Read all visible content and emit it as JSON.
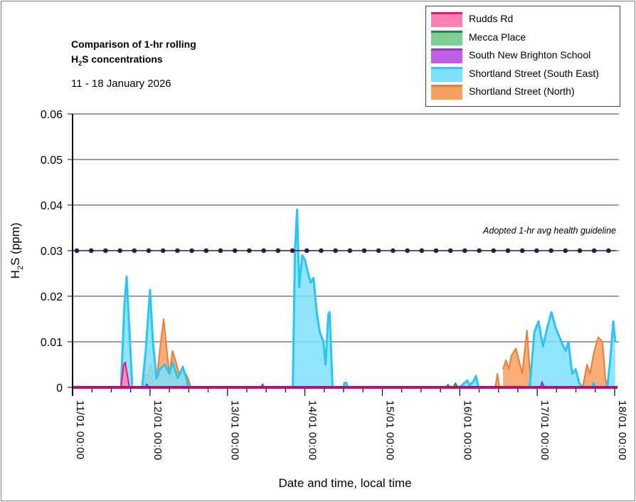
{
  "title_line1": "Comparison of 1-hr rolling",
  "title_line2_prefix": "H",
  "title_line2_sub": "2",
  "title_line2_suffix": "S concentrations",
  "subtitle": "11 - 18 January 2026",
  "chart_data": {
    "type": "area",
    "xlabel": "Date and time, local time",
    "ylabel_prefix": "H",
    "ylabel_sub": "2",
    "ylabel_suffix": "S (ppm)",
    "ylim": [
      0,
      0.06
    ],
    "yticks": [
      0,
      0.01,
      0.02,
      0.03,
      0.04,
      0.05,
      0.06
    ],
    "ytick_labels": [
      "0",
      "0.01",
      "0.02",
      "0.03",
      "0.04",
      "0.05",
      "0.06"
    ],
    "xlim": [
      "2026-01-11T00:00",
      "2026-01-18T00:00"
    ],
    "xticks": [
      "2026-01-11T00:00",
      "2026-01-12T00:00",
      "2026-01-13T00:00",
      "2026-01-14T00:00",
      "2026-01-15T00:00",
      "2026-01-16T00:00",
      "2026-01-17T00:00",
      "2026-01-18T00:00"
    ],
    "xtick_labels": [
      "11/01 00:00",
      "12/01 00:00",
      "13/01 00:00",
      "14/01 00:00",
      "15/01 00:00",
      "16/01 00:00",
      "17/01 00:00",
      "18/01 00:00"
    ],
    "minor_tick_hours": 6,
    "grid": "horizontal",
    "legend_position": "top-right",
    "guideline": {
      "value": 0.03,
      "label": "Adopted 1-hr avg health guideline",
      "color": "#2e1a47"
    },
    "series": [
      {
        "name": "Shortland Street (North)",
        "line_color": "#ed7d31",
        "fill_color": "#f8a061",
        "points": [
          [
            "2026-01-11T21:30",
            0
          ],
          [
            "2026-01-11T22:00",
            0.0027
          ],
          [
            "2026-01-11T23:20",
            0.0027
          ],
          [
            "2026-01-12T00:15",
            0.005
          ],
          [
            "2026-01-12T01:00",
            0.003
          ],
          [
            "2026-01-12T02:25",
            0.004
          ],
          [
            "2026-01-12T03:20",
            0.01
          ],
          [
            "2026-01-12T04:15",
            0.015
          ],
          [
            "2026-01-12T05:05",
            0.009
          ],
          [
            "2026-01-12T06:00",
            0.003
          ],
          [
            "2026-01-12T07:00",
            0.008
          ],
          [
            "2026-01-12T07:50",
            0.006
          ],
          [
            "2026-01-12T09:00",
            0.003
          ],
          [
            "2026-01-12T10:20",
            0.004
          ],
          [
            "2026-01-12T11:50",
            0.002
          ],
          [
            "2026-01-12T12:35",
            0
          ],
          [
            "2026-01-16T11:00",
            0
          ],
          [
            "2026-01-16T11:40",
            0.003
          ],
          [
            "2026-01-16T12:20",
            0
          ],
          [
            "2026-01-16T13:25",
            0.004
          ],
          [
            "2026-01-16T14:20",
            0.006
          ],
          [
            "2026-01-16T15:10",
            0.004
          ],
          [
            "2026-01-16T16:00",
            0.007
          ],
          [
            "2026-01-16T17:25",
            0.0085
          ],
          [
            "2026-01-16T18:20",
            0.006
          ],
          [
            "2026-01-16T19:20",
            0.003
          ],
          [
            "2026-01-16T20:50",
            0.0125
          ],
          [
            "2026-01-16T21:30",
            0.006
          ],
          [
            "2026-01-16T22:05",
            0
          ],
          [
            "2026-01-17T14:05",
            0
          ],
          [
            "2026-01-17T15:25",
            0.005
          ],
          [
            "2026-01-17T16:20",
            0.003
          ],
          [
            "2026-01-17T17:40",
            0.008
          ],
          [
            "2026-01-17T18:55",
            0.011
          ],
          [
            "2026-01-17T20:15",
            0.01
          ],
          [
            "2026-01-17T21:05",
            0.002
          ],
          [
            "2026-01-17T21:45",
            0
          ]
        ]
      },
      {
        "name": "Shortland Street (South East)",
        "line_color": "#29c5f6",
        "fill_color": "#7fe0fb",
        "points": [
          [
            "2026-01-11T15:00",
            0
          ],
          [
            "2026-01-11T16:05",
            0.018
          ],
          [
            "2026-01-11T16:45",
            0.0243
          ],
          [
            "2026-01-11T17:40",
            0.012
          ],
          [
            "2026-01-11T18:30",
            0
          ],
          [
            "2026-01-11T21:35",
            0
          ],
          [
            "2026-01-11T22:40",
            0.008
          ],
          [
            "2026-01-12T00:00",
            0.0214
          ],
          [
            "2026-01-12T00:55",
            0.01
          ],
          [
            "2026-01-12T02:00",
            0.002
          ],
          [
            "2026-01-12T03:05",
            0.004
          ],
          [
            "2026-01-12T04:35",
            0.005
          ],
          [
            "2026-01-12T06:00",
            0.003
          ],
          [
            "2026-01-12T07:00",
            0.0055
          ],
          [
            "2026-01-12T08:35",
            0.002
          ],
          [
            "2026-01-12T10:10",
            0.0045
          ],
          [
            "2026-01-12T11:15",
            0.002
          ],
          [
            "2026-01-12T11:55",
            0
          ],
          [
            "2026-01-13T20:15",
            0
          ],
          [
            "2026-01-13T20:55",
            0.03
          ],
          [
            "2026-01-13T21:35",
            0.039
          ],
          [
            "2026-01-13T22:15",
            0.022
          ],
          [
            "2026-01-13T23:10",
            0.029
          ],
          [
            "2026-01-14T00:00",
            0.028
          ],
          [
            "2026-01-14T00:40",
            0.026
          ],
          [
            "2026-01-14T01:45",
            0.023
          ],
          [
            "2026-01-14T02:40",
            0.024
          ],
          [
            "2026-01-14T03:45",
            0.016
          ],
          [
            "2026-01-14T04:40",
            0.012
          ],
          [
            "2026-01-14T05:45",
            0.01
          ],
          [
            "2026-01-14T06:25",
            0.005
          ],
          [
            "2026-01-14T07:15",
            0.016
          ],
          [
            "2026-01-14T07:40",
            0.0165
          ],
          [
            "2026-01-14T08:35",
            0
          ],
          [
            "2026-01-14T12:00",
            0
          ],
          [
            "2026-01-14T12:15",
            0.001
          ],
          [
            "2026-01-14T12:55",
            0.001
          ],
          [
            "2026-01-14T13:10",
            0
          ],
          [
            "2026-01-16T00:00",
            0
          ],
          [
            "2026-01-16T01:10",
            0.0008
          ],
          [
            "2026-01-16T02:20",
            0.0015
          ],
          [
            "2026-01-16T03:00",
            0.0005
          ],
          [
            "2026-01-16T04:10",
            0.0012
          ],
          [
            "2026-01-16T05:00",
            0.0025
          ],
          [
            "2026-01-16T05:50",
            0
          ],
          [
            "2026-01-16T21:40",
            0
          ],
          [
            "2026-01-16T23:05",
            0.012
          ],
          [
            "2026-01-17T00:25",
            0.0145
          ],
          [
            "2026-01-17T01:45",
            0.009
          ],
          [
            "2026-01-17T03:05",
            0.013
          ],
          [
            "2026-01-17T04:25",
            0.0165
          ],
          [
            "2026-01-17T05:45",
            0.013
          ],
          [
            "2026-01-17T07:30",
            0.01
          ],
          [
            "2026-01-17T08:50",
            0.008
          ],
          [
            "2026-01-17T09:40",
            0.01
          ],
          [
            "2026-01-17T10:50",
            0.003
          ],
          [
            "2026-01-17T11:55",
            0.004
          ],
          [
            "2026-01-17T13:00",
            0.001
          ],
          [
            "2026-01-17T14:00",
            0
          ],
          [
            "2026-01-17T17:00",
            0
          ],
          [
            "2026-01-17T17:25",
            0.001
          ],
          [
            "2026-01-17T18:00",
            0
          ],
          [
            "2026-01-17T21:40",
            0
          ],
          [
            "2026-01-17T22:30",
            0.005
          ],
          [
            "2026-01-17T23:35",
            0.0145
          ],
          [
            "2026-01-18T00:10",
            0.01
          ]
        ]
      },
      {
        "name": "South New Brighton School",
        "line_color": "#9933cc",
        "fill_color": "#c060e0",
        "points": [
          [
            "2026-01-11T22:40",
            0
          ],
          [
            "2026-01-11T23:00",
            0.0007
          ],
          [
            "2026-01-11T23:30",
            0
          ],
          [
            "2026-01-13T10:30",
            0
          ],
          [
            "2026-01-13T10:50",
            0.0007
          ],
          [
            "2026-01-13T11:20",
            0
          ],
          [
            "2026-01-17T01:00",
            0
          ],
          [
            "2026-01-17T01:30",
            0.0012
          ],
          [
            "2026-01-17T02:10",
            0
          ]
        ]
      },
      {
        "name": "Mecca Place",
        "line_color": "#1e8c3a",
        "fill_color": "#80cc99",
        "points": [
          [
            "2026-01-15T19:40",
            0
          ],
          [
            "2026-01-15T20:20",
            0.0006
          ],
          [
            "2026-01-15T21:00",
            0
          ],
          [
            "2026-01-15T22:00",
            0
          ],
          [
            "2026-01-15T22:40",
            0.0009
          ],
          [
            "2026-01-15T23:20",
            0
          ]
        ]
      },
      {
        "name": "Rudds Rd",
        "line_color": "#e6197a",
        "fill_color": "#ff80b3",
        "points": [
          [
            "2026-01-11T15:00",
            0
          ],
          [
            "2026-01-11T15:50",
            0.005
          ],
          [
            "2026-01-11T16:20",
            0.0055
          ],
          [
            "2026-01-11T16:55",
            0.003
          ],
          [
            "2026-01-11T17:35",
            0
          ]
        ]
      }
    ],
    "legend_order": [
      "Rudds Rd",
      "Mecca Place",
      "South New Brighton School",
      "Shortland Street (South East)",
      "Shortland Street (North)"
    ]
  }
}
